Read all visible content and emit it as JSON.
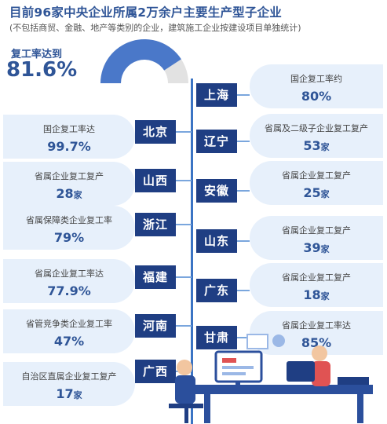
{
  "title": "目前96家中央企业所属2万余户主要生产型子企业",
  "subtitle": "(不包括商贸、金融、地产等类别的企业，建筑施工企业按建设项目单独统计)",
  "overall": {
    "label": "复工率达到",
    "value": "81.6%",
    "rate": 0.816
  },
  "colors": {
    "dark_blue": "#1f3e83",
    "accent": "#2f5597",
    "card": "#e7f0fb",
    "gauge_fill": "#4a78c9",
    "gauge_rest": "#e2e2e2"
  },
  "left": [
    {
      "province": "北京",
      "label": "国企复工率达",
      "value": "99.7%",
      "unit": ""
    },
    {
      "province": "山西",
      "label": "省属企业复工复产",
      "value": "28",
      "unit": "家"
    },
    {
      "province": "浙江",
      "label": "省属保障类企业复工率",
      "value": "79%",
      "unit": ""
    },
    {
      "province": "福建",
      "label": "省属企业复工率达",
      "value": "77.9%",
      "unit": ""
    },
    {
      "province": "河南",
      "label": "省管竞争类企业复工率",
      "value": "47%",
      "unit": ""
    },
    {
      "province": "广西",
      "label": "自治区直属企业复工复产",
      "value": "17",
      "unit": "家"
    }
  ],
  "right": [
    {
      "province": "上海",
      "label": "国企复工率约",
      "value": "80%",
      "unit": ""
    },
    {
      "province": "辽宁",
      "label": "省属及二级子企业复工复产",
      "value": "53",
      "unit": "家"
    },
    {
      "province": "安徽",
      "label": "省属企业复工复产",
      "value": "25",
      "unit": "家"
    },
    {
      "province": "山东",
      "label": "省属企业复工复产",
      "value": "39",
      "unit": "家"
    },
    {
      "province": "广东",
      "label": "省属企业复工复产",
      "value": "18",
      "unit": "家"
    },
    {
      "province": "甘肃",
      "label": "省属企业复工率达",
      "value": "85%",
      "unit": ""
    }
  ]
}
